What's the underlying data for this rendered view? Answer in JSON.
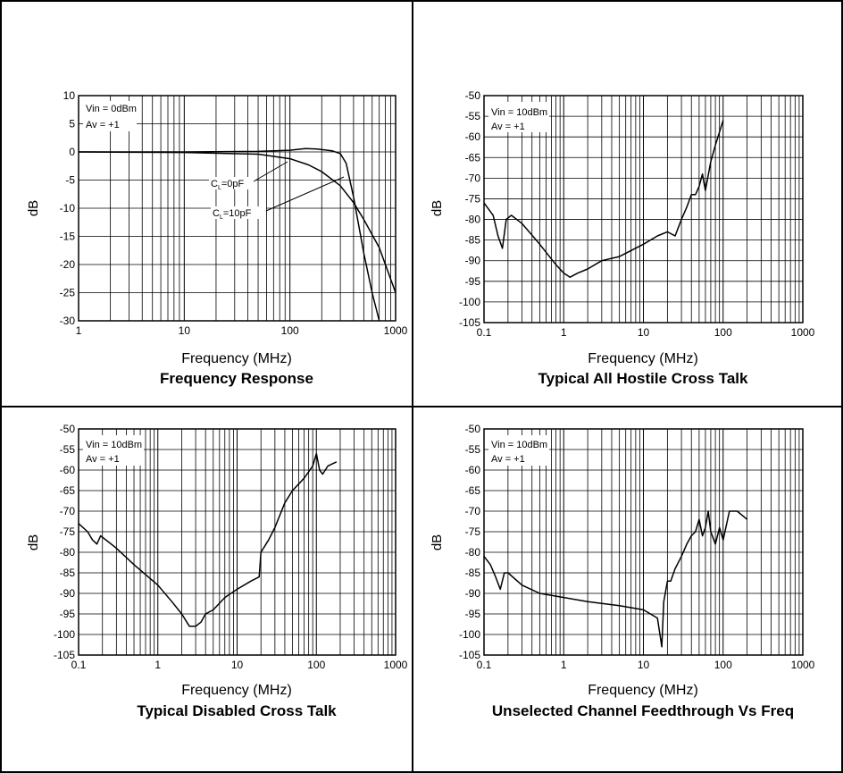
{
  "panels": [
    {
      "id": "freq-response",
      "title": "Frequency Response",
      "xlabel": "Frequency (MHz)",
      "ylabel": "dB",
      "annotations": [
        "Vin = 0dBm",
        "Av = +1"
      ],
      "curve_labels": [
        "C_L=0pF",
        "C_L=10pF"
      ],
      "xticks": [
        "1",
        "10",
        "100",
        "1000"
      ],
      "yticks": [
        "10",
        "5",
        "0",
        "-5",
        "-10",
        "-15",
        "-20",
        "-25",
        "-30"
      ]
    },
    {
      "id": "all-hostile",
      "title": "Typical All Hostile Cross Talk",
      "xlabel": "Frequency (MHz)",
      "ylabel": "dB",
      "annotations": [
        "Vin = 10dBm",
        "Av = +1"
      ],
      "xticks": [
        "0.1",
        "1",
        "10",
        "100",
        "1000"
      ],
      "yticks": [
        "-50",
        "-55",
        "-60",
        "-65",
        "-70",
        "-75",
        "-80",
        "-85",
        "-90",
        "-95",
        "-100",
        "-105"
      ]
    },
    {
      "id": "disabled",
      "title": "Typical Disabled Cross Talk",
      "xlabel": "Frequency (MHz)",
      "ylabel": "dB",
      "annotations": [
        "Vin = 10dBm",
        "Av = +1"
      ],
      "xticks": [
        "0.1",
        "1",
        "10",
        "100",
        "1000"
      ],
      "yticks": [
        "-50",
        "-55",
        "-60",
        "-65",
        "-70",
        "-75",
        "-80",
        "-85",
        "-90",
        "-95",
        "-100",
        "-105"
      ]
    },
    {
      "id": "unselected",
      "title": "Unselected Channel Feedthrough Vs Freq",
      "xlabel": "Frequency (MHz)",
      "ylabel": "dB",
      "annotations": [
        "Vin = 10dBm",
        "Av = +1"
      ],
      "xticks": [
        "0.1",
        "1",
        "10",
        "100",
        "1000"
      ],
      "yticks": [
        "-50",
        "-55",
        "-60",
        "-65",
        "-70",
        "-75",
        "-80",
        "-85",
        "-90",
        "-95",
        "-100",
        "-105"
      ]
    }
  ],
  "chart_data": [
    {
      "type": "line",
      "title": "Frequency Response",
      "xlabel": "Frequency (MHz)",
      "ylabel": "dB",
      "xscale": "log",
      "xlim": [
        1,
        1000
      ],
      "ylim": [
        -30,
        10
      ],
      "grid": true,
      "series": [
        {
          "name": "C_L=0pF",
          "x": [
            1,
            10,
            50,
            100,
            150,
            200,
            300,
            400,
            500,
            700,
            1000
          ],
          "y": [
            0,
            -0.1,
            -0.4,
            -1.2,
            -2.3,
            -3.5,
            -6,
            -9,
            -12,
            -17,
            -25
          ]
        },
        {
          "name": "C_L=10pF",
          "x": [
            1,
            10,
            50,
            100,
            140,
            180,
            250,
            300,
            340,
            400,
            500,
            600,
            700
          ],
          "y": [
            0,
            0,
            0.1,
            0.3,
            0.6,
            0.5,
            0.2,
            -0.3,
            -2,
            -8,
            -18,
            -25,
            -30
          ]
        }
      ]
    },
    {
      "type": "line",
      "title": "Typical All Hostile Cross Talk",
      "xlabel": "Frequency (MHz)",
      "ylabel": "dB",
      "xscale": "log",
      "xlim": [
        0.1,
        1000
      ],
      "ylim": [
        -105,
        -50
      ],
      "grid": true,
      "series": [
        {
          "x": [
            0.1,
            0.13,
            0.15,
            0.17,
            0.19,
            0.22,
            0.3,
            0.5,
            0.8,
            1,
            1.2,
            1.5,
            2,
            3,
            5,
            10,
            15,
            20,
            25,
            30,
            35,
            40,
            45,
            50,
            55,
            60,
            70,
            80,
            100
          ],
          "y": [
            -76,
            -79,
            -84,
            -87,
            -80,
            -79,
            -81,
            -86,
            -91,
            -93,
            -94,
            -93,
            -92,
            -90,
            -89,
            -86,
            -84,
            -83,
            -84,
            -80,
            -77,
            -74,
            -74,
            -72,
            -69,
            -73,
            -66,
            -62,
            -56
          ]
        }
      ]
    },
    {
      "type": "line",
      "title": "Typical Disabled Cross Talk",
      "xlabel": "Frequency (MHz)",
      "ylabel": "dB",
      "xscale": "log",
      "xlim": [
        0.1,
        1000
      ],
      "ylim": [
        -105,
        -50
      ],
      "grid": true,
      "series": [
        {
          "x": [
            0.1,
            0.13,
            0.15,
            0.17,
            0.19,
            0.3,
            0.5,
            1,
            1.5,
            2,
            2.5,
            3,
            3.5,
            4,
            5,
            7,
            10,
            15,
            19,
            20,
            25,
            30,
            40,
            50,
            70,
            90,
            100,
            110,
            120,
            140,
            180
          ],
          "y": [
            -73,
            -75,
            -77,
            -78,
            -76,
            -79,
            -83,
            -88,
            -92,
            -95,
            -98,
            -98,
            -97,
            -95,
            -94,
            -91,
            -89,
            -87,
            -86,
            -80,
            -77,
            -74,
            -68,
            -65,
            -62,
            -59,
            -56,
            -60,
            -61,
            -59,
            -58
          ]
        }
      ]
    },
    {
      "type": "line",
      "title": "Unselected Channel Feedthrough Vs Freq",
      "xlabel": "Frequency (MHz)",
      "ylabel": "dB",
      "xscale": "log",
      "xlim": [
        0.1,
        1000
      ],
      "ylim": [
        -105,
        -50
      ],
      "grid": true,
      "series": [
        {
          "x": [
            0.1,
            0.12,
            0.14,
            0.16,
            0.18,
            0.2,
            0.3,
            0.5,
            1,
            2,
            5,
            10,
            15,
            17,
            18,
            20,
            22,
            25,
            30,
            35,
            40,
            45,
            50,
            55,
            60,
            65,
            70,
            80,
            90,
            100,
            120,
            150,
            200
          ],
          "y": [
            -81,
            -83,
            -86,
            -89,
            -85,
            -85,
            -88,
            -90,
            -91,
            -92,
            -93,
            -94,
            -96,
            -103,
            -92,
            -87,
            -87,
            -84,
            -81,
            -78,
            -76,
            -75,
            -72,
            -76,
            -74,
            -70,
            -75,
            -78,
            -74,
            -77,
            -70,
            -70,
            -72
          ]
        }
      ]
    }
  ]
}
